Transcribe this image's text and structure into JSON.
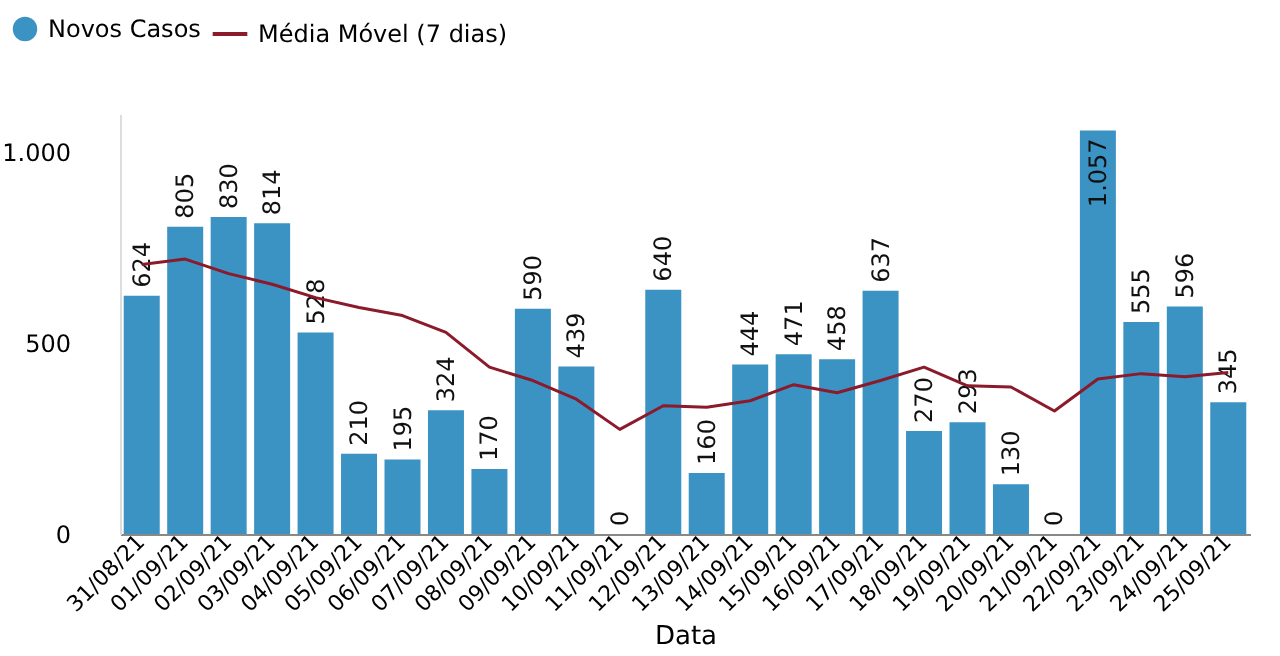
{
  "chart_data": {
    "type": "bar",
    "xlabel": "Data",
    "categories": [
      "31/08/21",
      "01/09/21",
      "02/09/21",
      "03/09/21",
      "04/09/21",
      "05/09/21",
      "06/09/21",
      "07/09/21",
      "08/09/21",
      "09/09/21",
      "10/09/21",
      "11/09/21",
      "12/09/21",
      "13/09/21",
      "14/09/21",
      "15/09/21",
      "16/09/21",
      "17/09/21",
      "18/09/21",
      "19/09/21",
      "20/09/21",
      "21/09/21",
      "22/09/21",
      "23/09/21",
      "24/09/21",
      "25/09/21"
    ],
    "series": [
      {
        "name": "Novos Casos",
        "color": "#3a93c3",
        "values": [
          624,
          805,
          830,
          814,
          528,
          210,
          195,
          324,
          170,
          590,
          439,
          0,
          640,
          160,
          444,
          471,
          458,
          637,
          270,
          293,
          130,
          0,
          1057,
          555,
          596,
          345
        ],
        "value_labels": [
          "624",
          "805",
          "830",
          "814",
          "528",
          "210",
          "195",
          "324",
          "170",
          "590",
          "439",
          "0",
          "640",
          "160",
          "444",
          "471",
          "458",
          "637",
          "270",
          "293",
          "130",
          "0",
          "1.057",
          "555",
          "596",
          "345"
        ]
      },
      {
        "name": "Média Móvel (7 dias)",
        "type": "line",
        "color": "#8b1a2b",
        "values": [
          706,
          720,
          682,
          654,
          619,
          593,
          572,
          528,
          437,
          402,
          353,
          274,
          336,
          332,
          349,
          391,
          370,
          402,
          437,
          388,
          385,
          322,
          406,
          420,
          412,
          423
        ]
      }
    ],
    "ylim": [
      0,
      1100
    ],
    "yticks": [
      0,
      500,
      {
        "value": 1000,
        "label": "1.000"
      }
    ],
    "grid": false,
    "legend": "top left",
    "marker": "none",
    "line_style": "solid"
  }
}
